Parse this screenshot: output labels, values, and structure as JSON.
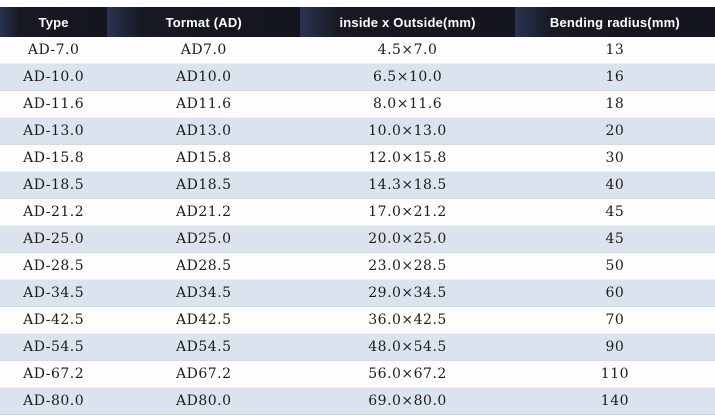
{
  "chart_data": {
    "type": "table",
    "columns": [
      "Type",
      "Tormat (AD)",
      "inside x Outside(mm)",
      "Bending radius(mm)"
    ],
    "rows": [
      [
        "AD-7.0",
        "AD7.0",
        "4.5×7.0",
        "13"
      ],
      [
        "AD-10.0",
        "AD10.0",
        "6.5×10.0",
        "16"
      ],
      [
        "AD-11.6",
        "AD11.6",
        "8.0×11.6",
        "18"
      ],
      [
        "AD-13.0",
        "AD13.0",
        "10.0×13.0",
        "20"
      ],
      [
        "AD-15.8",
        "AD15.8",
        "12.0×15.8",
        "30"
      ],
      [
        "AD-18.5",
        "AD18.5",
        "14.3×18.5",
        "40"
      ],
      [
        "AD-21.2",
        "AD21.2",
        "17.0×21.2",
        "45"
      ],
      [
        "AD-25.0",
        "AD25.0",
        "20.0×25.0",
        "45"
      ],
      [
        "AD-28.5",
        "AD28.5",
        "23.0×28.5",
        "50"
      ],
      [
        "AD-34.5",
        "AD34.5",
        "29.0×34.5",
        "60"
      ],
      [
        "AD-42.5",
        "AD42.5",
        "36.0×42.5",
        "70"
      ],
      [
        "AD-54.5",
        "AD54.5",
        "48.0×54.5",
        "90"
      ],
      [
        "AD-67.2",
        "AD67.2",
        "56.0×67.2",
        "110"
      ],
      [
        "AD-80.0",
        "AD80.0",
        "69.0×80.0",
        "140"
      ]
    ],
    "colors": {
      "header_bg": "#14151e",
      "header_text": "#ffffff",
      "row_alt_bg": "#dbe4ee",
      "row_bg": "#fdfdfd",
      "cell_text": "#1c1c1c"
    },
    "layout": {
      "grid": false,
      "legend": "none"
    }
  }
}
